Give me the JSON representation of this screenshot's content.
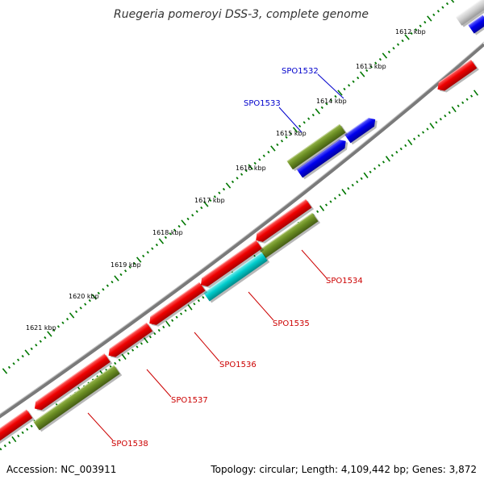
{
  "title": "Ruegeria pomeroyi DSS-3, complete genome",
  "footer": {
    "accession": "Accession: NC_003911",
    "summary": "Topology: circular; Length: 4,109,442 bp; Genes: 3,872"
  },
  "tick_labels": [
    "1612 kbp",
    "1613 kbp",
    "1614 kbp",
    "1615 kbp",
    "1616 kbp",
    "1617 kbp",
    "1618 kbp",
    "1619 kbp",
    "1620 kbp",
    "1621 kbp"
  ],
  "gene_labels": {
    "forward": [
      "SPO1532",
      "SPO1533"
    ],
    "reverse": [
      "SPO1534",
      "SPO1535",
      "SPO1536",
      "SPO1537",
      "SPO1538"
    ]
  },
  "colors": {
    "forward_label": "#0000cc",
    "reverse_label": "#cc0000",
    "cds_red": "#ee0000",
    "cds_blue": "#0000ee",
    "cds_olive": "#6b8e23",
    "cds_cyan": "#00cccc",
    "backbone": "#888888",
    "ticks": "#007700"
  }
}
